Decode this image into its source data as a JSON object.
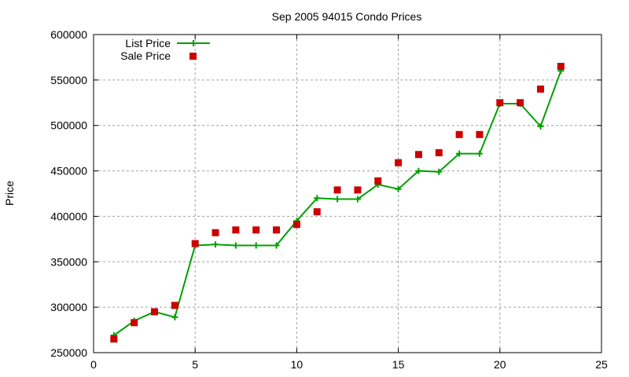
{
  "chart_data": {
    "type": "line",
    "title": "Sep 2005 94015 Condo Prices",
    "xlabel": "",
    "ylabel": "Price",
    "xlim": [
      0,
      25
    ],
    "ylim": [
      250000,
      600000
    ],
    "xticks": [
      0,
      5,
      10,
      15,
      20,
      25
    ],
    "yticks": [
      250000,
      300000,
      350000,
      400000,
      450000,
      500000,
      550000,
      600000
    ],
    "grid": true,
    "legend_position": "top-left",
    "series": [
      {
        "name": "List Price",
        "style": "linespoints",
        "color": "#00a000",
        "marker": "plus",
        "x": [
          1,
          2,
          3,
          4,
          5,
          6,
          7,
          8,
          9,
          10,
          11,
          12,
          13,
          14,
          15,
          16,
          17,
          18,
          19,
          20,
          21,
          22,
          23
        ],
        "y": [
          269000,
          285000,
          295000,
          289000,
          368000,
          369000,
          368000,
          368000,
          368000,
          395000,
          420000,
          419000,
          419000,
          435000,
          430000,
          450000,
          449000,
          469000,
          469000,
          524000,
          524000,
          499000,
          560000
        ]
      },
      {
        "name": "Sale Price",
        "style": "points",
        "color": "#cc0000",
        "marker": "square",
        "x": [
          1,
          2,
          3,
          4,
          5,
          6,
          7,
          8,
          9,
          10,
          11,
          12,
          13,
          14,
          15,
          16,
          17,
          18,
          19,
          20,
          21,
          22,
          23
        ],
        "y": [
          265000,
          283000,
          295000,
          302000,
          370000,
          382000,
          385000,
          385000,
          385000,
          391000,
          405000,
          429000,
          429000,
          439000,
          459000,
          468000,
          470000,
          490000,
          490000,
          525000,
          525000,
          540000,
          565000
        ]
      }
    ]
  }
}
